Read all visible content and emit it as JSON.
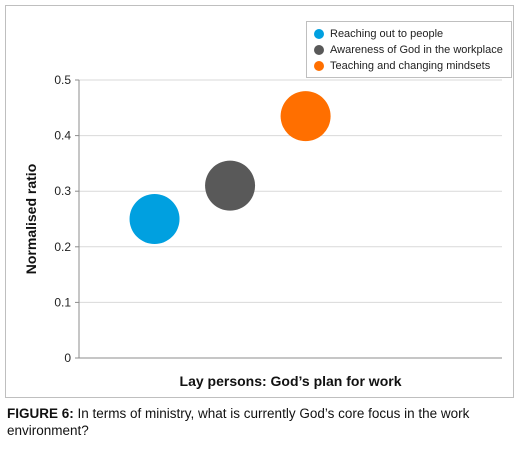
{
  "chart_data": {
    "type": "scatter",
    "xlabel": "Lay persons: God’s plan for work",
    "ylabel": "Normalised ratio",
    "ylim": [
      0,
      0.5
    ],
    "yticks": [
      "0",
      "0.1",
      "0.2",
      "0.3",
      "0.4",
      "0.5"
    ],
    "grid": true,
    "legend_position": "top-right",
    "series": [
      {
        "name": "Reaching out to people",
        "color": "#00a0e0",
        "x": 1,
        "y": 0.25
      },
      {
        "name": "Awareness of God in the workplace",
        "color": "#595959",
        "x": 2,
        "y": 0.31
      },
      {
        "name": "Teaching and changing mindsets",
        "color": "#ff6f00",
        "x": 3,
        "y": 0.435
      }
    ]
  },
  "caption": {
    "label": "FIGURE 6:",
    "text": " In terms of ministry, what is currently God’s core focus in the work environment?"
  }
}
